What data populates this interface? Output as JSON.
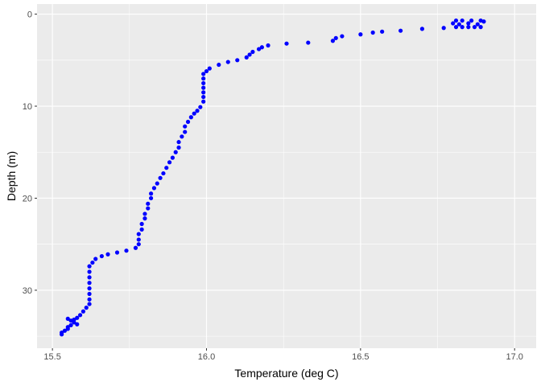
{
  "chart_data": {
    "type": "scatter",
    "title": "",
    "xlabel": "Temperature (deg C)",
    "ylabel": "Depth (m)",
    "xlim": [
      15.45,
      17.07
    ],
    "ylim": [
      -1.1,
      36.3
    ],
    "y_reversed": true,
    "x_ticks": [
      15.5,
      16.0,
      16.5,
      17.0
    ],
    "x_tick_labels": [
      "15.5",
      "16.0",
      "16.5",
      "17.0"
    ],
    "y_ticks": [
      0,
      10,
      20,
      30
    ],
    "y_tick_labels": [
      "0",
      "10",
      "20",
      "30"
    ],
    "grid": true,
    "legend": "none",
    "colors": {
      "panel": "#ebebeb",
      "grid": "#ffffff",
      "point": "#0000ff"
    },
    "series": [
      {
        "points": [
          [
            16.81,
            0.7
          ],
          [
            16.83,
            0.7
          ],
          [
            16.86,
            0.7
          ],
          [
            16.89,
            0.7
          ],
          [
            16.9,
            0.8
          ],
          [
            16.8,
            1.0
          ],
          [
            16.85,
            1.0
          ],
          [
            16.82,
            1.1
          ],
          [
            16.88,
            1.1
          ],
          [
            16.81,
            1.4
          ],
          [
            16.83,
            1.4
          ],
          [
            16.85,
            1.4
          ],
          [
            16.87,
            1.4
          ],
          [
            16.89,
            1.4
          ],
          [
            16.77,
            1.5
          ],
          [
            16.7,
            1.6
          ],
          [
            16.63,
            1.8
          ],
          [
            16.57,
            1.9
          ],
          [
            16.54,
            2.0
          ],
          [
            16.5,
            2.2
          ],
          [
            16.44,
            2.4
          ],
          [
            16.42,
            2.6
          ],
          [
            16.41,
            2.9
          ],
          [
            16.33,
            3.1
          ],
          [
            16.26,
            3.2
          ],
          [
            16.2,
            3.4
          ],
          [
            16.18,
            3.6
          ],
          [
            16.17,
            3.8
          ],
          [
            16.15,
            4.1
          ],
          [
            16.14,
            4.4
          ],
          [
            16.13,
            4.7
          ],
          [
            16.1,
            5.0
          ],
          [
            16.07,
            5.2
          ],
          [
            16.04,
            5.5
          ],
          [
            16.01,
            5.9
          ],
          [
            16.0,
            6.2
          ],
          [
            15.99,
            6.5
          ],
          [
            15.99,
            7.0
          ],
          [
            15.99,
            7.5
          ],
          [
            15.99,
            8.0
          ],
          [
            15.99,
            8.5
          ],
          [
            15.99,
            9.0
          ],
          [
            15.99,
            9.5
          ],
          [
            15.98,
            10.1
          ],
          [
            15.97,
            10.5
          ],
          [
            15.96,
            10.8
          ],
          [
            15.95,
            11.2
          ],
          [
            15.94,
            11.7
          ],
          [
            15.93,
            12.2
          ],
          [
            15.93,
            12.8
          ],
          [
            15.92,
            13.3
          ],
          [
            15.91,
            13.9
          ],
          [
            15.91,
            14.5
          ],
          [
            15.9,
            15.0
          ],
          [
            15.89,
            15.6
          ],
          [
            15.88,
            16.1
          ],
          [
            15.87,
            16.7
          ],
          [
            15.86,
            17.3
          ],
          [
            15.85,
            17.8
          ],
          [
            15.84,
            18.4
          ],
          [
            15.83,
            18.9
          ],
          [
            15.82,
            19.5
          ],
          [
            15.82,
            20.0
          ],
          [
            15.81,
            20.6
          ],
          [
            15.81,
            21.1
          ],
          [
            15.8,
            21.7
          ],
          [
            15.8,
            22.2
          ],
          [
            15.79,
            22.8
          ],
          [
            15.79,
            23.4
          ],
          [
            15.78,
            23.9
          ],
          [
            15.78,
            24.5
          ],
          [
            15.78,
            25.0
          ],
          [
            15.77,
            25.4
          ],
          [
            15.74,
            25.7
          ],
          [
            15.71,
            25.9
          ],
          [
            15.68,
            26.1
          ],
          [
            15.66,
            26.3
          ],
          [
            15.64,
            26.6
          ],
          [
            15.63,
            27.0
          ],
          [
            15.62,
            27.4
          ],
          [
            15.62,
            28.0
          ],
          [
            15.62,
            28.6
          ],
          [
            15.62,
            29.2
          ],
          [
            15.62,
            29.8
          ],
          [
            15.62,
            30.4
          ],
          [
            15.62,
            31.0
          ],
          [
            15.62,
            31.5
          ],
          [
            15.61,
            31.9
          ],
          [
            15.6,
            32.3
          ],
          [
            15.59,
            32.7
          ],
          [
            15.58,
            33.0
          ],
          [
            15.57,
            33.2
          ],
          [
            15.55,
            33.1
          ],
          [
            15.56,
            33.3
          ],
          [
            15.57,
            33.5
          ],
          [
            15.58,
            33.7
          ],
          [
            15.56,
            33.8
          ],
          [
            15.55,
            34.0
          ],
          [
            15.55,
            34.2
          ],
          [
            15.54,
            34.4
          ],
          [
            15.53,
            34.6
          ],
          [
            15.53,
            34.8
          ]
        ]
      }
    ]
  }
}
